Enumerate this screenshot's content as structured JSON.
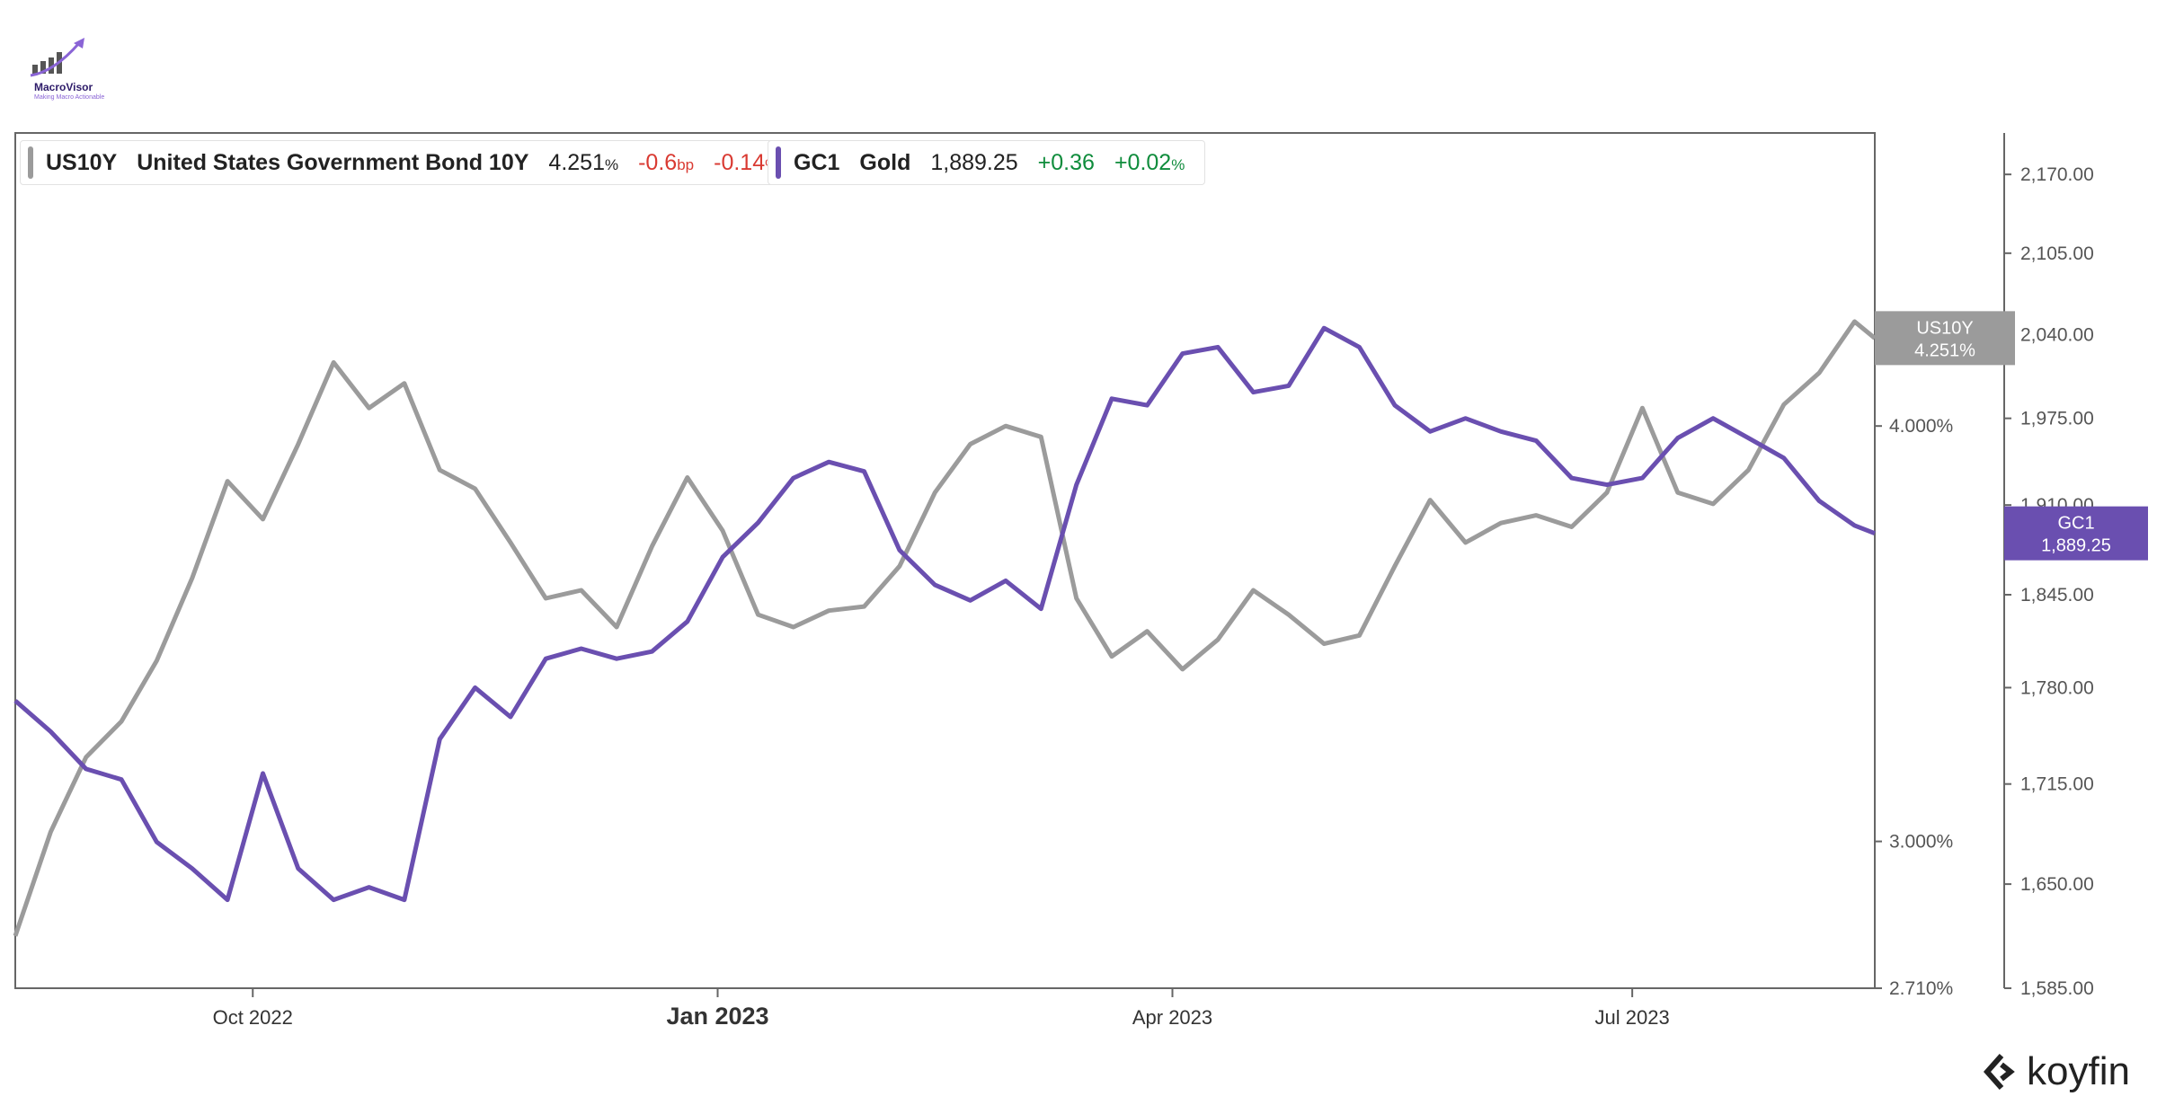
{
  "branding": {
    "logo_text": "MacroVisor",
    "logo_tagline": "Making Macro Actionable",
    "watermark": "koyfin"
  },
  "legend": {
    "us10y": {
      "ticker": "US10Y",
      "name": "United States Government Bond 10Y",
      "value": "4.251",
      "value_unit": "%",
      "change_bp": "-0.6",
      "change_bp_unit": "bp",
      "change_pct": "-0.14",
      "change_pct_unit": "%"
    },
    "gc1": {
      "ticker": "GC1",
      "name": "Gold",
      "value": "1,889.25",
      "change": "+0.36",
      "change_pct": "+0.02",
      "change_pct_unit": "%"
    }
  },
  "colors": {
    "us10y": "#9b9b9b",
    "gold": "#6a4fb0",
    "negative": "#d93a32",
    "positive": "#0f8c3c"
  },
  "chart_data": {
    "type": "line",
    "x_axis": {
      "ticks": [
        "Oct 2022",
        "Jan 2023",
        "Apr 2023",
        "Jul 2023"
      ],
      "range": [
        "2022-08-15",
        "2023-08-18"
      ]
    },
    "y_axis_left": {
      "unit": "%",
      "scale": "log",
      "ticks": [
        "4.000%",
        "3.000%",
        "2.710%"
      ],
      "range": [
        2.71,
        4.9
      ]
    },
    "y_axis_right": {
      "scale": "log",
      "ticks": [
        "2,170.00",
        "2,105.00",
        "2,040.00",
        "1,975.00",
        "1,910.00",
        "1,845.00",
        "1,780.00",
        "1,715.00",
        "1,650.00",
        "1,585.00"
      ],
      "range": [
        1585,
        2205
      ]
    },
    "last_value_tags": [
      {
        "label": "US10Y",
        "value": "4.251%"
      },
      {
        "label": "GC1",
        "value": "1,889.25"
      }
    ],
    "series": [
      {
        "name": "US10Y",
        "axis": "left",
        "points": [
          [
            "2022-08-15",
            2.81
          ],
          [
            "2022-08-22",
            3.02
          ],
          [
            "2022-08-29",
            3.18
          ],
          [
            "2022-09-05",
            3.26
          ],
          [
            "2022-09-12",
            3.4
          ],
          [
            "2022-09-19",
            3.6
          ],
          [
            "2022-09-26",
            3.85
          ],
          [
            "2022-10-03",
            3.75
          ],
          [
            "2022-10-10",
            3.95
          ],
          [
            "2022-10-17",
            4.18
          ],
          [
            "2022-10-24",
            4.05
          ],
          [
            "2022-10-31",
            4.12
          ],
          [
            "2022-11-07",
            3.88
          ],
          [
            "2022-11-14",
            3.83
          ],
          [
            "2022-11-21",
            3.69
          ],
          [
            "2022-11-28",
            3.55
          ],
          [
            "2022-12-05",
            3.57
          ],
          [
            "2022-12-12",
            3.48
          ],
          [
            "2022-12-19",
            3.68
          ],
          [
            "2022-12-26",
            3.86
          ],
          [
            "2023-01-02",
            3.72
          ],
          [
            "2023-01-09",
            3.51
          ],
          [
            "2023-01-16",
            3.48
          ],
          [
            "2023-01-23",
            3.52
          ],
          [
            "2023-01-30",
            3.53
          ],
          [
            "2023-02-06",
            3.63
          ],
          [
            "2023-02-13",
            3.82
          ],
          [
            "2023-02-20",
            3.95
          ],
          [
            "2023-02-27",
            4.0
          ],
          [
            "2023-03-06",
            3.97
          ],
          [
            "2023-03-13",
            3.55
          ],
          [
            "2023-03-20",
            3.41
          ],
          [
            "2023-03-27",
            3.47
          ],
          [
            "2023-04-03",
            3.38
          ],
          [
            "2023-04-10",
            3.45
          ],
          [
            "2023-04-17",
            3.57
          ],
          [
            "2023-04-24",
            3.51
          ],
          [
            "2023-05-01",
            3.44
          ],
          [
            "2023-05-08",
            3.46
          ],
          [
            "2023-05-15",
            3.63
          ],
          [
            "2023-05-22",
            3.8
          ],
          [
            "2023-05-29",
            3.69
          ],
          [
            "2023-06-05",
            3.74
          ],
          [
            "2023-06-12",
            3.76
          ],
          [
            "2023-06-19",
            3.73
          ],
          [
            "2023-06-26",
            3.82
          ],
          [
            "2023-07-03",
            4.05
          ],
          [
            "2023-07-10",
            3.82
          ],
          [
            "2023-07-17",
            3.79
          ],
          [
            "2023-07-24",
            3.88
          ],
          [
            "2023-07-31",
            4.06
          ],
          [
            "2023-08-07",
            4.15
          ],
          [
            "2023-08-14",
            4.3
          ],
          [
            "2023-08-18",
            4.251
          ]
        ]
      },
      {
        "name": "GC1",
        "axis": "right",
        "points": [
          [
            "2022-08-15",
            1771
          ],
          [
            "2022-08-22",
            1750
          ],
          [
            "2022-08-29",
            1725
          ],
          [
            "2022-09-05",
            1718
          ],
          [
            "2022-09-12",
            1677
          ],
          [
            "2022-09-19",
            1660
          ],
          [
            "2022-09-26",
            1640
          ],
          [
            "2022-10-03",
            1722
          ],
          [
            "2022-10-10",
            1660
          ],
          [
            "2022-10-17",
            1640
          ],
          [
            "2022-10-24",
            1648
          ],
          [
            "2022-10-31",
            1640
          ],
          [
            "2022-11-07",
            1745
          ],
          [
            "2022-11-14",
            1780
          ],
          [
            "2022-11-21",
            1760
          ],
          [
            "2022-11-28",
            1800
          ],
          [
            "2022-12-05",
            1807
          ],
          [
            "2022-12-12",
            1800
          ],
          [
            "2022-12-19",
            1805
          ],
          [
            "2022-12-26",
            1826
          ],
          [
            "2023-01-02",
            1872
          ],
          [
            "2023-01-09",
            1897
          ],
          [
            "2023-01-16",
            1930
          ],
          [
            "2023-01-23",
            1942
          ],
          [
            "2023-01-30",
            1935
          ],
          [
            "2023-02-06",
            1877
          ],
          [
            "2023-02-13",
            1852
          ],
          [
            "2023-02-20",
            1841
          ],
          [
            "2023-02-27",
            1855
          ],
          [
            "2023-03-06",
            1835
          ],
          [
            "2023-03-13",
            1925
          ],
          [
            "2023-03-20",
            1990
          ],
          [
            "2023-03-27",
            1985
          ],
          [
            "2023-04-03",
            2025
          ],
          [
            "2023-04-10",
            2030
          ],
          [
            "2023-04-17",
            1995
          ],
          [
            "2023-04-24",
            2000
          ],
          [
            "2023-05-01",
            2045
          ],
          [
            "2023-05-08",
            2030
          ],
          [
            "2023-05-15",
            1985
          ],
          [
            "2023-05-22",
            1965
          ],
          [
            "2023-05-29",
            1975
          ],
          [
            "2023-06-05",
            1965
          ],
          [
            "2023-06-12",
            1958
          ],
          [
            "2023-06-19",
            1930
          ],
          [
            "2023-06-26",
            1925
          ],
          [
            "2023-07-03",
            1930
          ],
          [
            "2023-07-10",
            1960
          ],
          [
            "2023-07-17",
            1975
          ],
          [
            "2023-07-24",
            1960
          ],
          [
            "2023-07-31",
            1945
          ],
          [
            "2023-08-07",
            1913
          ],
          [
            "2023-08-14",
            1895
          ],
          [
            "2023-08-18",
            1889.25
          ]
        ]
      }
    ]
  }
}
